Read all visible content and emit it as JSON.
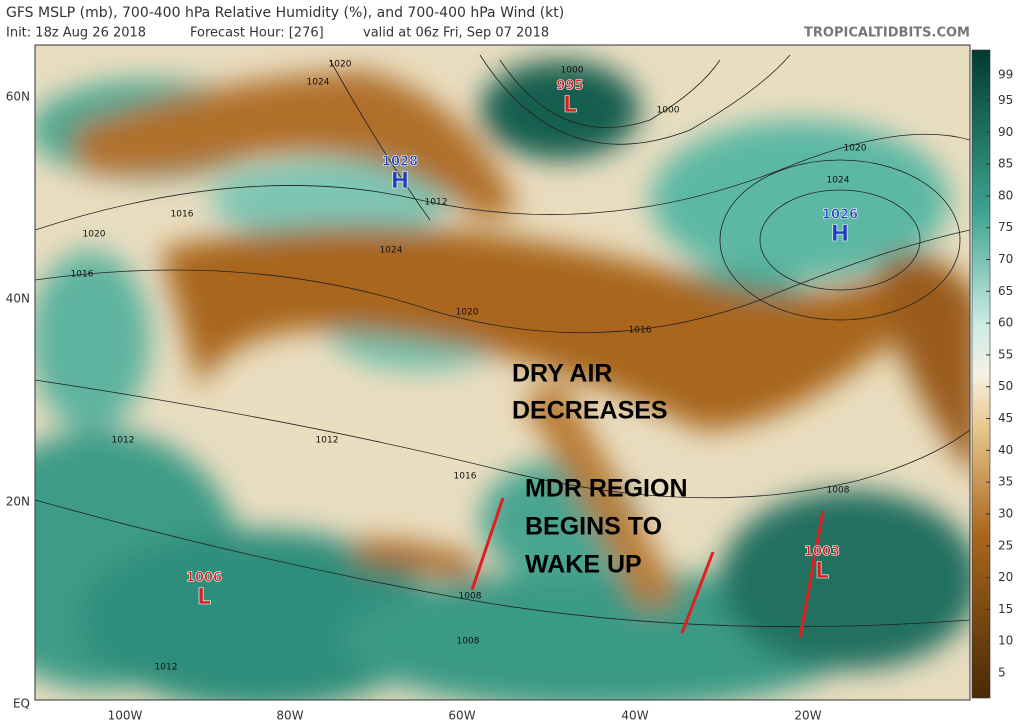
{
  "header": {
    "title": "GFS MSLP (mb), 700-400 hPa Relative Humidity (%), and 700-400 hPa Wind (kt)",
    "init": "Init: 18z Aug 26 2018",
    "forecast_hour": "Forecast Hour: [276]",
    "valid": "valid at 06z Fri, Sep 07 2018",
    "source": "TROPICALTIDBITS.COM"
  },
  "map": {
    "latitude_labels": [
      "60N",
      "40N",
      "20N",
      "EQ"
    ],
    "longitude_labels": [
      "100W",
      "80W",
      "60W",
      "40W",
      "20W"
    ],
    "pressure_centers": [
      {
        "value": "995",
        "symbol": "L"
      },
      {
        "value": "1028",
        "symbol": "H"
      },
      {
        "value": "1026",
        "symbol": "H"
      },
      {
        "value": "1006",
        "symbol": "L"
      },
      {
        "value": "1003",
        "symbol": "L"
      }
    ],
    "isobar_labels": [
      "1020",
      "1024",
      "1000",
      "1000",
      "1020",
      "1024",
      "1012",
      "1016",
      "1020",
      "1024",
      "1016",
      "1020",
      "1016",
      "1012",
      "1012",
      "1016",
      "1008",
      "1008",
      "1008",
      "1012"
    ],
    "annotations": [
      "DRY AIR",
      "DECREASES",
      "MDR REGION",
      "BEGINS TO",
      "WAKE UP"
    ]
  },
  "colorbar": {
    "ticks": [
      5,
      10,
      15,
      20,
      25,
      30,
      35,
      40,
      45,
      50,
      55,
      60,
      65,
      70,
      75,
      80,
      85,
      90,
      95,
      99
    ]
  }
}
